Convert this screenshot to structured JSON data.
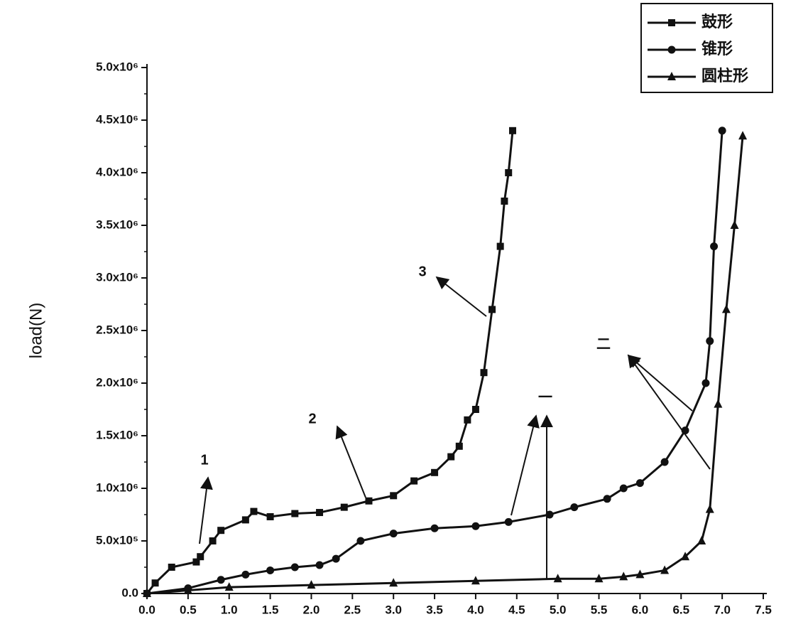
{
  "chart_data": {
    "type": "line",
    "ylabel": "load(N)",
    "xlim": [
      0,
      7.5
    ],
    "ylim": [
      0,
      5000000
    ],
    "xticks": [
      {
        "value": 0,
        "label": "0.0"
      },
      {
        "value": 0.5,
        "label": "0.5"
      },
      {
        "value": 1,
        "label": "1.0"
      },
      {
        "value": 1.5,
        "label": "1.5"
      },
      {
        "value": 2,
        "label": "2.0"
      },
      {
        "value": 2.5,
        "label": "2.5"
      },
      {
        "value": 3,
        "label": "3.0"
      },
      {
        "value": 3.5,
        "label": "3.5"
      },
      {
        "value": 4,
        "label": "4.0"
      },
      {
        "value": 4.5,
        "label": "4.5"
      },
      {
        "value": 5,
        "label": "5.0"
      },
      {
        "value": 5.5,
        "label": "5.5"
      },
      {
        "value": 6,
        "label": "6.0"
      },
      {
        "value": 6.5,
        "label": "6.5"
      },
      {
        "value": 7,
        "label": "7.0"
      },
      {
        "value": 7.5,
        "label": "7.5"
      }
    ],
    "yticks": [
      {
        "value": 0,
        "label": "0.0"
      },
      {
        "value": 500000,
        "label": "5.0x10⁵"
      },
      {
        "value": 1000000,
        "label": "1.0x10⁶"
      },
      {
        "value": 1500000,
        "label": "1.5x10⁶"
      },
      {
        "value": 2000000,
        "label": "2.0x10⁶"
      },
      {
        "value": 2500000,
        "label": "2.5x10⁶"
      },
      {
        "value": 3000000,
        "label": "3.0x10⁶"
      },
      {
        "value": 3500000,
        "label": "3.5x10⁶"
      },
      {
        "value": 4000000,
        "label": "4.0x10⁶"
      },
      {
        "value": 4500000,
        "label": "4.5x10⁶"
      },
      {
        "value": 5000000,
        "label": "5.0x10⁶"
      }
    ],
    "legend": "top-right",
    "annotations": [
      "1",
      "2",
      "3",
      "一",
      "二"
    ],
    "series": [
      {
        "name": "鼓形",
        "color": "#111111",
        "marker": "square",
        "x": [
          0,
          0.1,
          0.3,
          0.6,
          0.65,
          0.8,
          0.9,
          1.2,
          1.3,
          1.5,
          1.8,
          2.1,
          2.4,
          2.7,
          3.0,
          3.25,
          3.5,
          3.7,
          3.8,
          3.9,
          4.0,
          4.1,
          4.2,
          4.3,
          4.35,
          4.4,
          4.45
        ],
        "values": [
          0,
          100000,
          250000,
          300000,
          350000,
          500000,
          600000,
          700000,
          780000,
          730000,
          760000,
          770000,
          820000,
          880000,
          930000,
          1070000,
          1150000,
          1300000,
          1400000,
          1650000,
          1750000,
          2100000,
          2700000,
          3300000,
          3730000,
          4000000,
          4400000
        ]
      },
      {
        "name": "锥形",
        "color": "#111111",
        "marker": "circle",
        "x": [
          0,
          0.5,
          0.9,
          1.2,
          1.5,
          1.8,
          2.1,
          2.3,
          2.6,
          3.0,
          3.5,
          4.0,
          4.4,
          4.9,
          5.2,
          5.6,
          5.8,
          6.0,
          6.3,
          6.55,
          6.8,
          6.85,
          6.9,
          7.0
        ],
        "values": [
          0,
          50000,
          130000,
          180000,
          220000,
          250000,
          270000,
          330000,
          500000,
          570000,
          620000,
          640000,
          680000,
          750000,
          820000,
          900000,
          1000000,
          1050000,
          1250000,
          1550000,
          2000000,
          2400000,
          3300000,
          4400000
        ]
      },
      {
        "name": "圆柱形",
        "color": "#111111",
        "marker": "triangle",
        "x": [
          0,
          0.5,
          1.0,
          2.0,
          3.0,
          4.0,
          5.0,
          5.5,
          5.8,
          6.0,
          6.3,
          6.55,
          6.75,
          6.85,
          6.95,
          7.05,
          7.15,
          7.25
        ],
        "values": [
          0,
          30000,
          60000,
          80000,
          100000,
          120000,
          140000,
          140000,
          160000,
          180000,
          220000,
          350000,
          500000,
          800000,
          1800000,
          2700000,
          3500000,
          4350000
        ]
      }
    ]
  }
}
